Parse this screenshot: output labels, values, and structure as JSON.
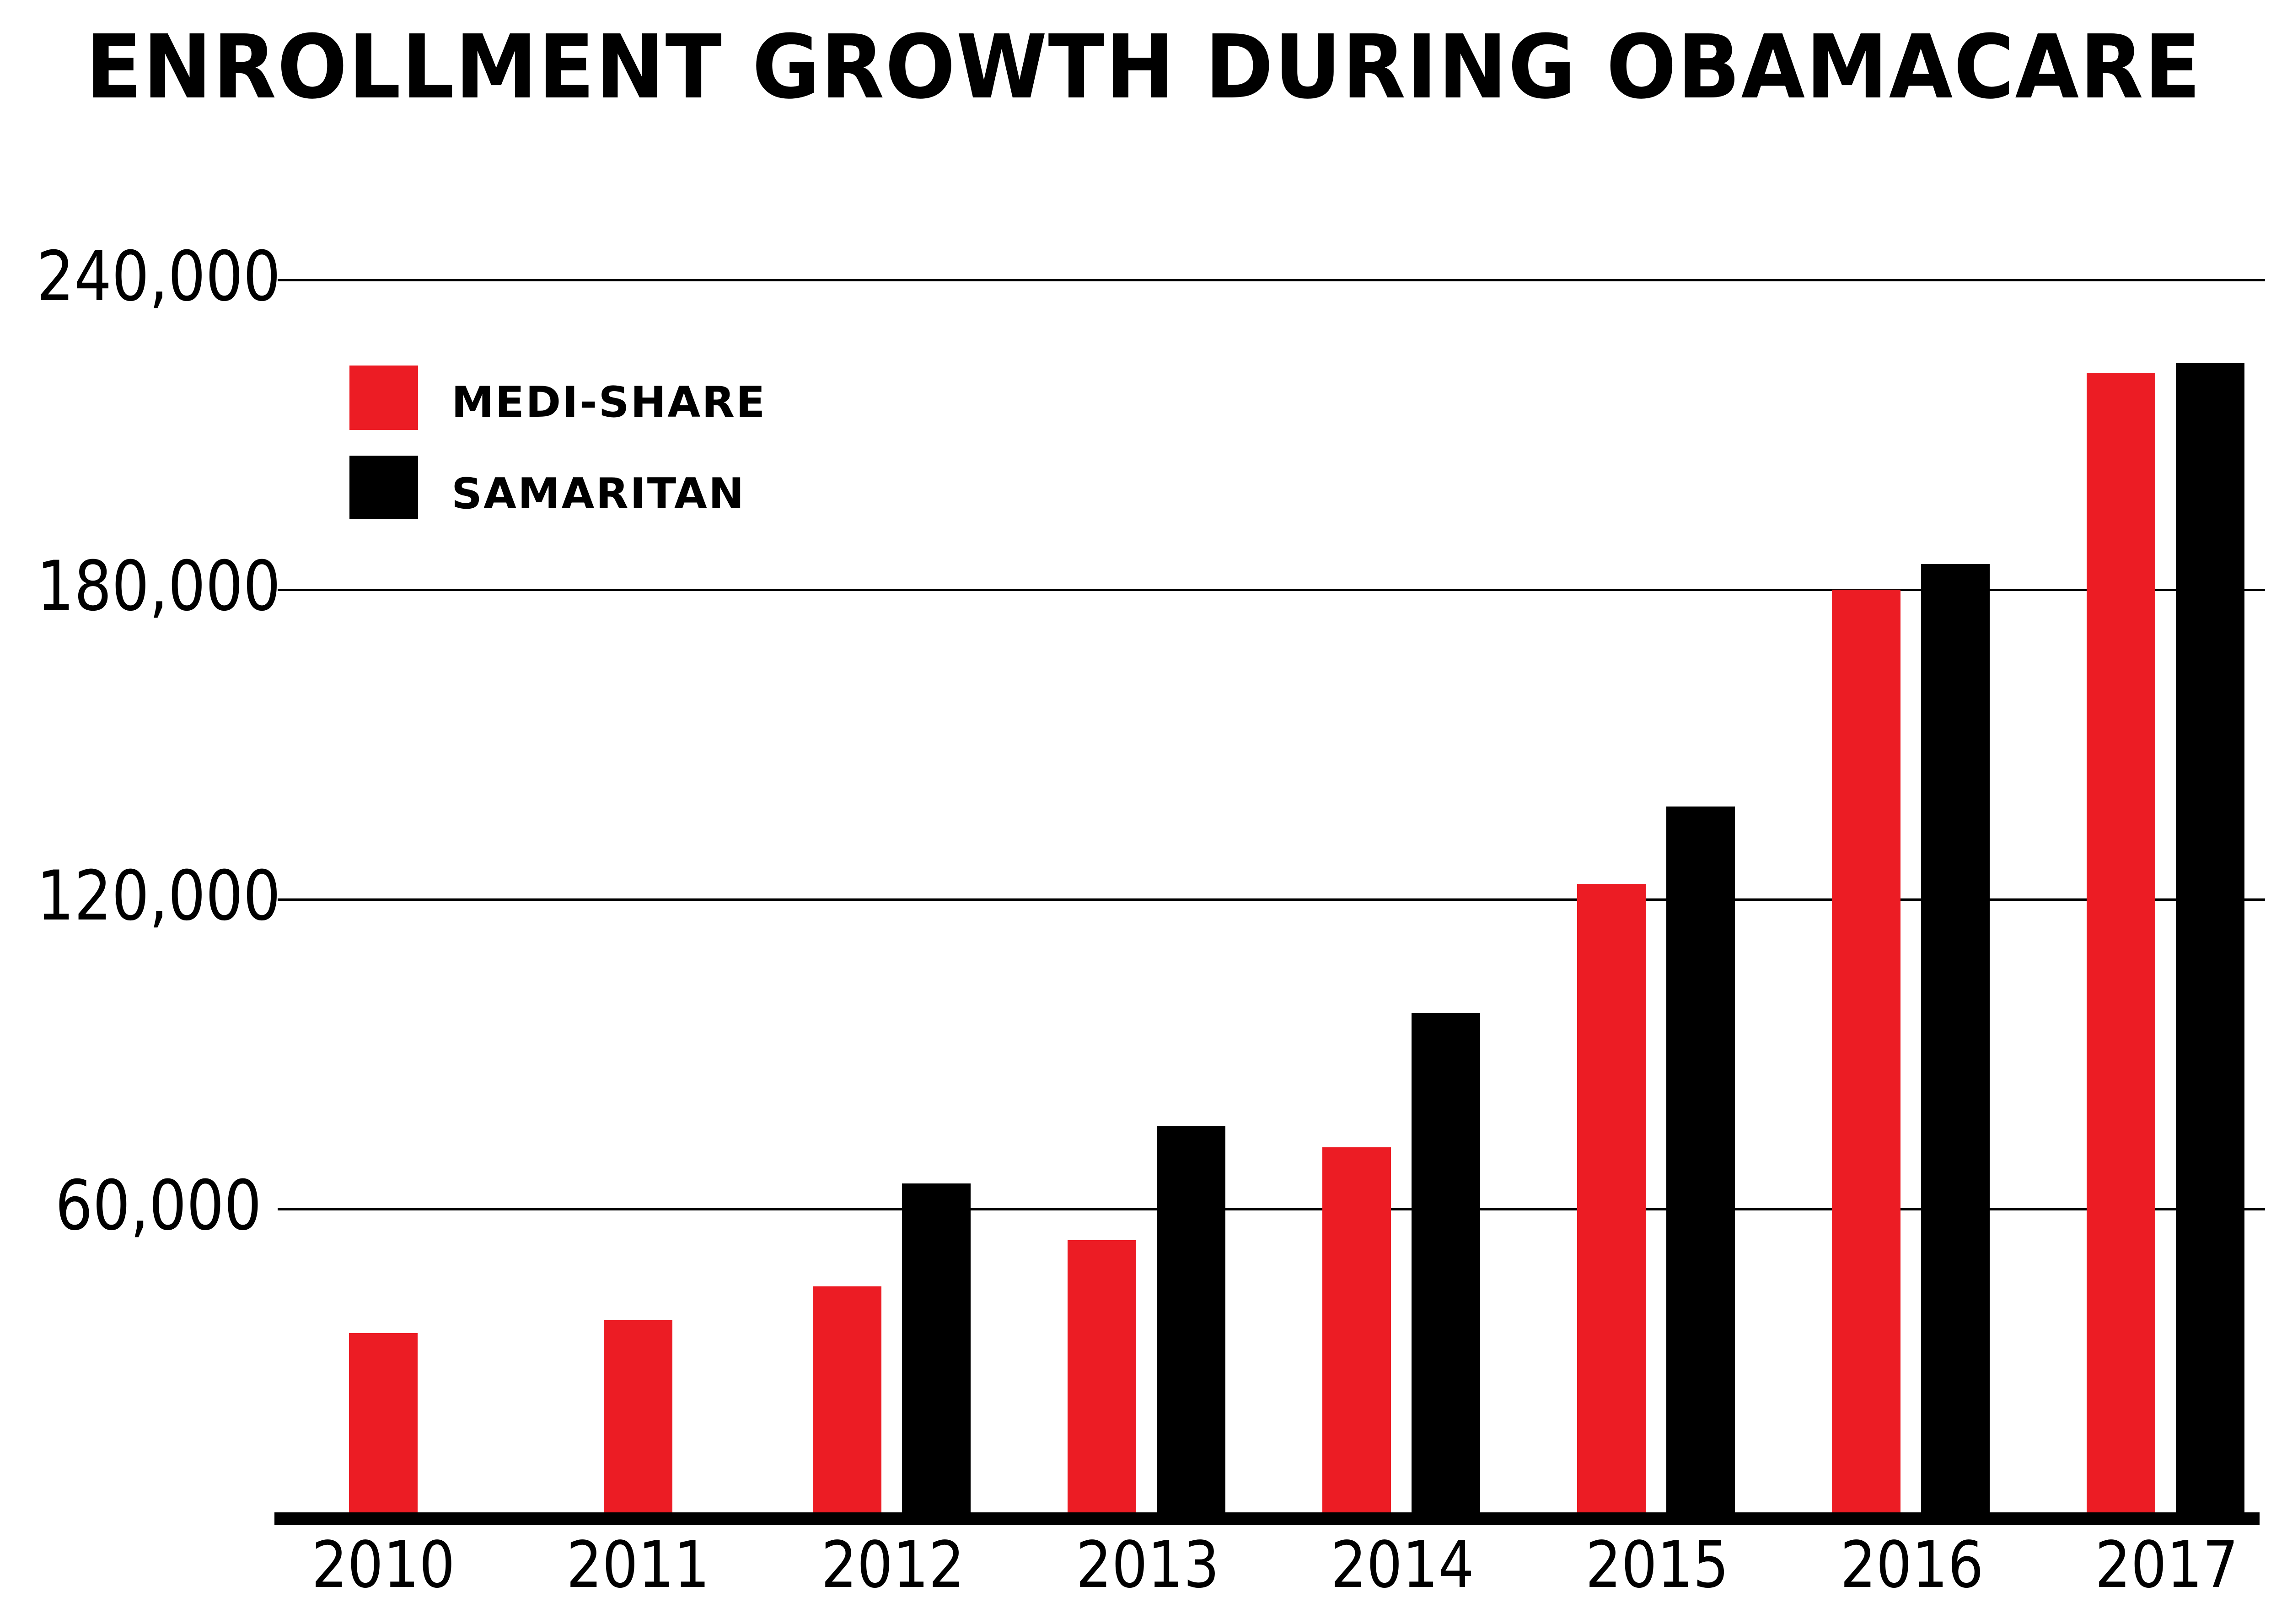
{
  "title": "ENROLLMENT GROWTH DURING OBAMACARE",
  "colors": {
    "medi_share_red": "#EC1C24",
    "samaritan_black": "#000000",
    "background": "#FFFFFF",
    "grid": "#000000"
  },
  "legend": [
    {
      "label": "MEDI-SHARE",
      "color": "#EC1C24"
    },
    {
      "label": "SAMARITAN",
      "color": "#000000"
    }
  ],
  "chart_data": {
    "type": "bar",
    "title": "ENROLLMENT GROWTH DURING OBAMACARE",
    "categories": [
      "2010",
      "2011",
      "2012",
      "2013",
      "2014",
      "2015",
      "2016",
      "2017"
    ],
    "series": [
      {
        "name": "MEDI-SHARE",
        "color": "#EC1C24",
        "values": [
          36000,
          38500,
          45000,
          54000,
          72000,
          123000,
          180000,
          222000
        ]
      },
      {
        "name": "SAMARITAN",
        "color": "#000000",
        "values": [
          null,
          null,
          65000,
          76000,
          98000,
          138000,
          185000,
          224000
        ]
      }
    ],
    "xlabel": "",
    "ylabel": "",
    "ylim": [
      0,
      240000
    ],
    "yticks": [
      240000,
      180000,
      120000,
      60000
    ],
    "ytick_labels": [
      "240,000",
      "180,000",
      "120,000",
      "60,000"
    ],
    "grid": "horizontal",
    "legend_position": "top-left-inside"
  }
}
